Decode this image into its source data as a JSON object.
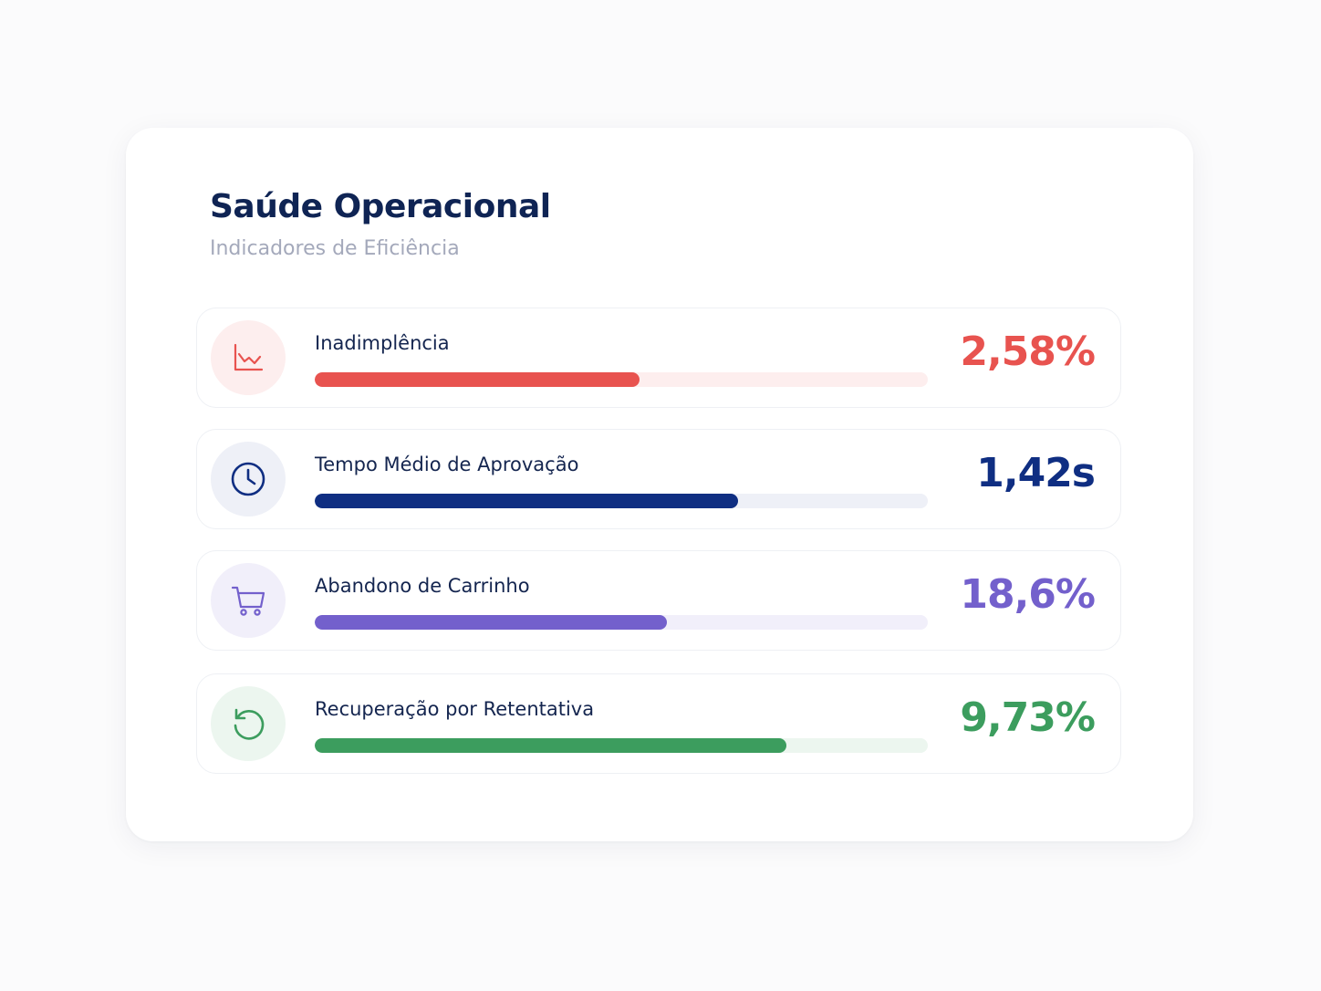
{
  "card": {
    "title": "Saúde Operacional",
    "subtitle": "Indicadores de Eficiência"
  },
  "metrics": [
    {
      "label": "Inadimplência",
      "value": "2,58%",
      "icon": "chart-line-down-icon",
      "progress": 0.53,
      "color": "#e8534f",
      "track_color": "#fdeeee",
      "icon_bg": "#fdeeee"
    },
    {
      "label": "Tempo Médio de Aprovação",
      "value": "1,42s",
      "icon": "clock-icon",
      "progress": 0.69,
      "color": "#0f2e82",
      "track_color": "#eef0f7",
      "icon_bg": "#eef0f7"
    },
    {
      "label": "Abandono de Carrinho",
      "value": "18,6%",
      "icon": "shopping-cart-icon",
      "progress": 0.575,
      "color": "#7360cc",
      "track_color": "#f1effa",
      "icon_bg": "#f1effa"
    },
    {
      "label": "Recuperação por Retentativa",
      "value": "9,73%",
      "icon": "refresh-icon",
      "progress": 0.77,
      "color": "#3c9d5e",
      "track_color": "#ecf6ef",
      "icon_bg": "#ecf6ef"
    }
  ]
}
